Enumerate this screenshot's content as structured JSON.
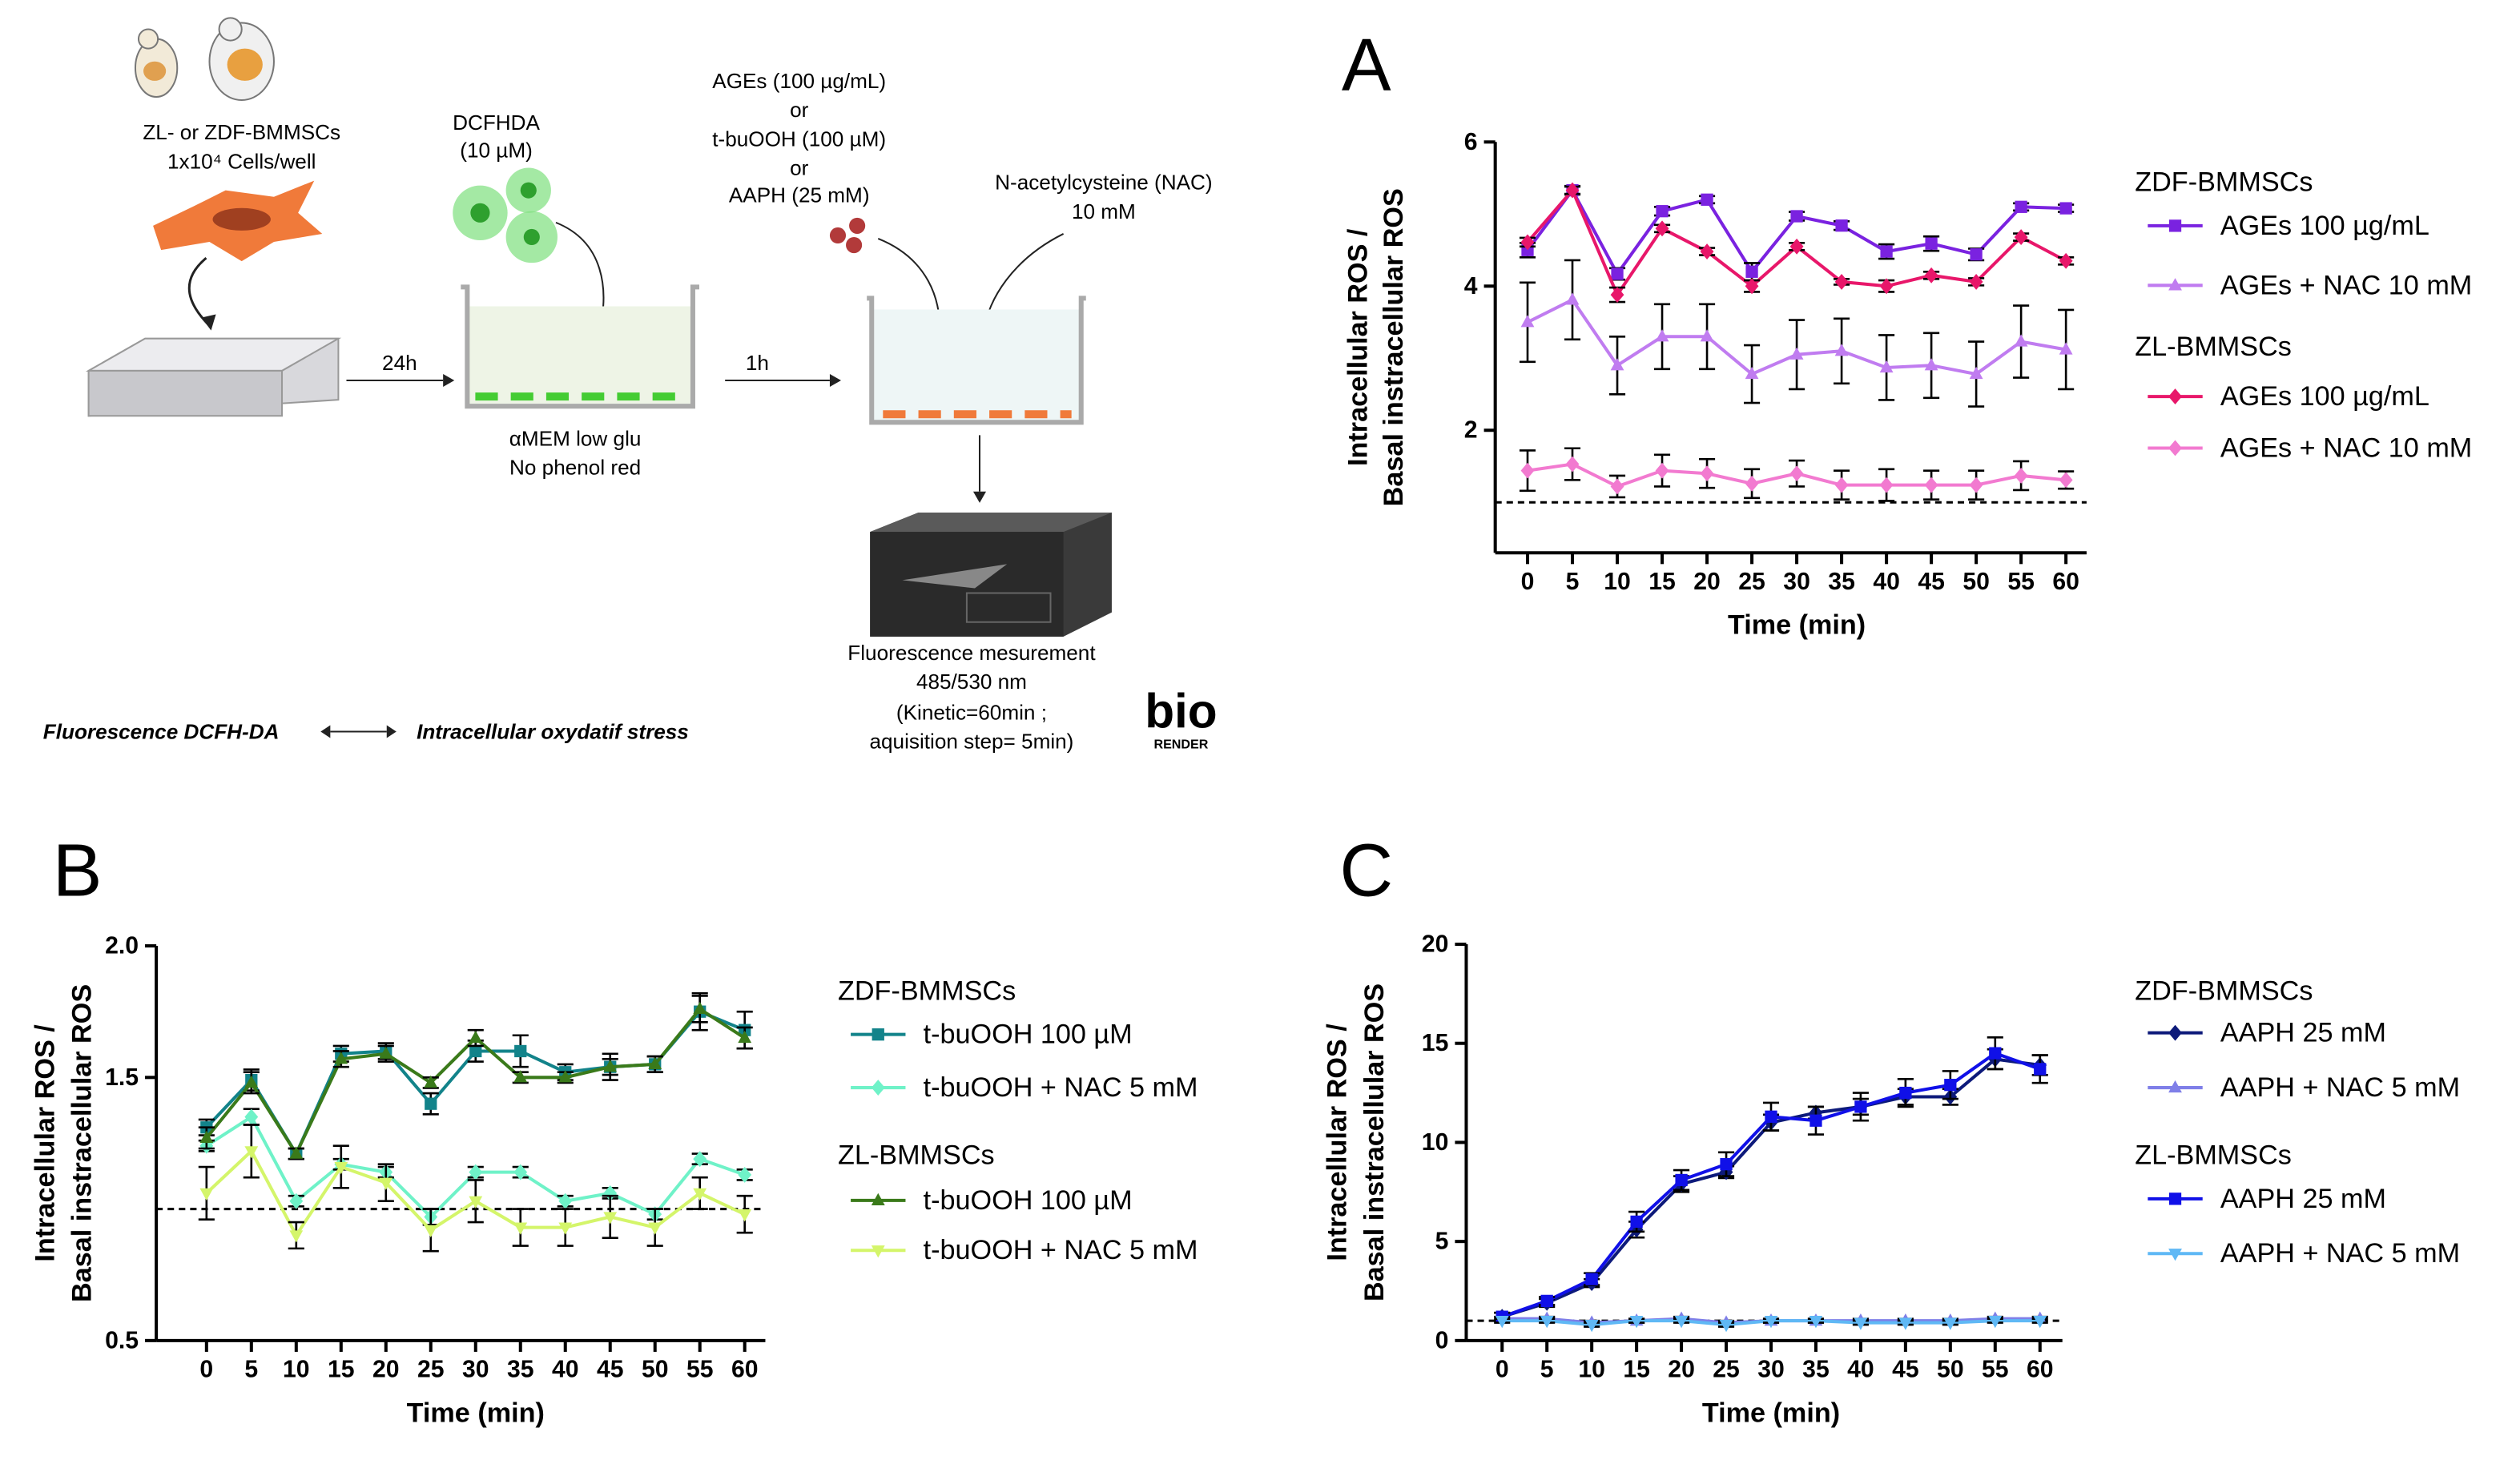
{
  "diagram": {
    "cells_line1": "ZL- or ZDF-BMMSCs",
    "cells_line2": "1x10⁴ Cells/well",
    "dye_line1": "DCFHDA",
    "dye_line2": "(10 µM)",
    "step1": "24h",
    "medium_line1": "αMEM  low glu",
    "medium_line2": "No phenol red",
    "stress_line1": "AGEs (100 µg/mL)",
    "stress_or1": "or",
    "stress_line2": "t-buOOH (100 µM)",
    "stress_or2": "or",
    "stress_line3": "AAPH (25 mM)",
    "step2": "1h",
    "nac_line1": "N-acetylcysteine  (NAC)",
    "nac_line2": "10 mM",
    "measure_line1": "Fluorescence mesurement",
    "measure_line2": "485/530 nm",
    "measure_line3": "(Kinetic=60min ;",
    "measure_line4": "aquisition step= 5min)",
    "legend_left": "Fluorescence DCFH-DA",
    "legend_right": "Intracellular oxydatif stress",
    "logo_main": "bio",
    "logo_sub": "RENDER"
  },
  "chart_data": [
    {
      "type": "line",
      "panel": "A",
      "xlabel": "Time (min)",
      "ylabel": [
        "Intracellular ROS /",
        "Basal instracellular ROS"
      ],
      "x": [
        0,
        5,
        10,
        15,
        20,
        25,
        30,
        35,
        40,
        45,
        50,
        55,
        60
      ],
      "xlim": [
        -3.6,
        62.3
      ],
      "xticks": [
        0,
        5,
        10,
        15,
        20,
        25,
        30,
        35,
        40,
        45,
        50,
        55,
        60
      ],
      "ylim": [
        0.3,
        6
      ],
      "yticks": [
        2,
        4,
        6
      ],
      "reference_line": 1,
      "series": [
        {
          "name": "AGEs 100 µg/mL",
          "group": "ZDF-BMMSCs",
          "color": "#7a22e0",
          "marker": "square",
          "values": [
            4.5,
            5.33,
            4.17,
            5.04,
            5.2,
            4.2,
            4.97,
            4.84,
            4.48,
            4.59,
            4.44,
            5.1,
            5.08
          ],
          "errors": [
            0.1,
            0.06,
            0.08,
            0.06,
            0.05,
            0.12,
            0.06,
            0.06,
            0.1,
            0.1,
            0.08,
            0.05,
            0.05
          ]
        },
        {
          "name": "AGEs + NAC 10 mM",
          "group": "ZDF-BMMSCs",
          "color": "#c07cf0",
          "marker": "triangle",
          "values": [
            3.5,
            3.81,
            2.9,
            3.3,
            3.3,
            2.78,
            3.05,
            3.1,
            2.87,
            2.9,
            2.78,
            3.23,
            3.12
          ],
          "errors": [
            0.55,
            0.55,
            0.4,
            0.45,
            0.45,
            0.4,
            0.48,
            0.45,
            0.45,
            0.45,
            0.45,
            0.5,
            0.55
          ]
        },
        {
          "name": "AGEs 100 µg/mL",
          "group": "ZL-BMMSCs",
          "color": "#e8176a",
          "marker": "diamond",
          "values": [
            4.61,
            5.33,
            3.88,
            4.8,
            4.48,
            4.0,
            4.55,
            4.06,
            4.0,
            4.15,
            4.06,
            4.68,
            4.35
          ],
          "errors": [
            0.06,
            0.05,
            0.1,
            0.05,
            0.05,
            0.08,
            0.05,
            0.04,
            0.08,
            0.05,
            0.05,
            0.05,
            0.05
          ]
        },
        {
          "name": "AGEs + NAC 10 mM",
          "group": "ZL-BMMSCs",
          "color": "#f27ad0",
          "marker": "diamond",
          "values": [
            1.44,
            1.53,
            1.22,
            1.44,
            1.4,
            1.26,
            1.4,
            1.24,
            1.24,
            1.24,
            1.24,
            1.37,
            1.31
          ],
          "errors": [
            0.28,
            0.22,
            0.15,
            0.22,
            0.2,
            0.2,
            0.18,
            0.2,
            0.22,
            0.2,
            0.2,
            0.2,
            0.12
          ]
        }
      ]
    },
    {
      "type": "line",
      "panel": "B",
      "xlabel": "Time (min)",
      "ylabel": [
        "Intracellular ROS /",
        "Basal instracellular ROS"
      ],
      "x": [
        0,
        5,
        10,
        15,
        20,
        25,
        30,
        35,
        40,
        45,
        50,
        55,
        60
      ],
      "xlim": [
        -5.6,
        62.3
      ],
      "xticks": [
        0,
        5,
        10,
        15,
        20,
        25,
        30,
        35,
        40,
        45,
        50,
        55,
        60
      ],
      "ylim": [
        0.5,
        2
      ],
      "yticks": [
        0.5,
        1.5,
        {
          "value": 2,
          "label": "2.0"
        }
      ],
      "reference_line": 1,
      "series": [
        {
          "name": "t-buOOH 100 µM",
          "group": "ZDF-BMMSCs",
          "color": "#12838a",
          "marker": "square",
          "values": [
            1.31,
            1.49,
            1.21,
            1.59,
            1.6,
            1.4,
            1.6,
            1.6,
            1.52,
            1.54,
            1.55,
            1.75,
            1.68
          ],
          "errors": [
            0.03,
            0.04,
            0.02,
            0.03,
            0.03,
            0.04,
            0.04,
            0.06,
            0.03,
            0.05,
            0.03,
            0.07,
            0.07
          ]
        },
        {
          "name": "t-buOOH + NAC 5 mM",
          "group": "ZDF-BMMSCs",
          "color": "#6ff2c8",
          "marker": "diamond",
          "values": [
            1.24,
            1.35,
            1.03,
            1.17,
            1.14,
            0.97,
            1.14,
            1.14,
            1.03,
            1.06,
            0.98,
            1.19,
            1.13
          ],
          "errors": [
            0.02,
            0.03,
            0.02,
            0.02,
            0.02,
            0.03,
            0.02,
            0.02,
            0.02,
            0.02,
            0.02,
            0.02,
            0.02
          ]
        },
        {
          "name": "t-buOOH 100 µM",
          "group": "ZL-BMMSCs",
          "color": "#3a7a1a",
          "marker": "triangle",
          "values": [
            1.27,
            1.48,
            1.21,
            1.57,
            1.59,
            1.48,
            1.65,
            1.5,
            1.5,
            1.54,
            1.55,
            1.76,
            1.65
          ],
          "errors": [
            0.04,
            0.04,
            0.02,
            0.03,
            0.03,
            0.02,
            0.03,
            0.02,
            0.02,
            0.03,
            0.03,
            0.05,
            0.04
          ]
        },
        {
          "name": "t-buOOH + NAC 5 mM",
          "group": "ZL-BMMSCs",
          "color": "#d4f56a",
          "marker": "triangle-down",
          "values": [
            1.06,
            1.22,
            0.9,
            1.16,
            1.1,
            0.92,
            1.03,
            0.93,
            0.93,
            0.97,
            0.93,
            1.06,
            0.98
          ],
          "errors": [
            0.1,
            0.1,
            0.05,
            0.08,
            0.07,
            0.08,
            0.08,
            0.07,
            0.07,
            0.08,
            0.07,
            0.06,
            0.07
          ]
        }
      ]
    },
    {
      "type": "line",
      "panel": "C",
      "xlabel": "Time (min)",
      "ylabel": [
        "Intracellular ROS /",
        "Basal instracellular ROS"
      ],
      "x": [
        0,
        5,
        10,
        15,
        20,
        25,
        30,
        35,
        40,
        45,
        50,
        55,
        60
      ],
      "xlim": [
        -4,
        62.5
      ],
      "xticks": [
        0,
        5,
        10,
        15,
        20,
        25,
        30,
        35,
        40,
        45,
        50,
        55,
        60
      ],
      "ylim": [
        0,
        20
      ],
      "yticks": [
        0,
        5,
        10,
        15,
        20
      ],
      "reference_line": 1,
      "series": [
        {
          "name": "AAPH 25 mM",
          "group": "ZDF-BMMSCs",
          "color": "#0d1a7a",
          "marker": "diamond",
          "values": [
            1.2,
            1.9,
            2.9,
            5.6,
            7.9,
            8.5,
            11.0,
            11.5,
            11.8,
            12.3,
            12.3,
            14.2,
            13.9
          ],
          "errors": [
            0.2,
            0.2,
            0.2,
            0.4,
            0.4,
            0.3,
            0.4,
            0.3,
            0.4,
            0.4,
            0.4,
            0.5,
            0.5
          ]
        },
        {
          "name": "AAPH + NAC 5 mM",
          "group": "ZDF-BMMSCs",
          "color": "#7f7fe8",
          "marker": "triangle",
          "values": [
            1.1,
            1.1,
            0.9,
            1.0,
            1.1,
            0.9,
            1.0,
            1.0,
            1.0,
            1.0,
            1.0,
            1.1,
            1.1
          ],
          "errors": [
            0.1,
            0.1,
            0.1,
            0.1,
            0.1,
            0.1,
            0.1,
            0.1,
            0.1,
            0.1,
            0.1,
            0.1,
            0.1
          ]
        },
        {
          "name": "AAPH 25 mM",
          "group": "ZL-BMMSCs",
          "color": "#1010e8",
          "marker": "square",
          "values": [
            1.2,
            2.0,
            3.1,
            6.0,
            8.1,
            8.9,
            11.3,
            11.1,
            11.8,
            12.5,
            12.9,
            14.5,
            13.7
          ],
          "errors": [
            0.2,
            0.2,
            0.3,
            0.5,
            0.5,
            0.6,
            0.7,
            0.7,
            0.7,
            0.7,
            0.7,
            0.8,
            0.7
          ]
        },
        {
          "name": "AAPH + NAC 5 mM",
          "group": "ZL-BMMSCs",
          "color": "#5fb8f5",
          "marker": "triangle-down",
          "values": [
            1.0,
            1.0,
            0.8,
            1.0,
            1.0,
            0.8,
            1.0,
            1.0,
            0.9,
            0.9,
            0.9,
            1.0,
            1.0
          ],
          "errors": [
            0.1,
            0.1,
            0.1,
            0.1,
            0.1,
            0.1,
            0.1,
            0.1,
            0.1,
            0.1,
            0.1,
            0.1,
            0.1
          ]
        }
      ]
    }
  ]
}
